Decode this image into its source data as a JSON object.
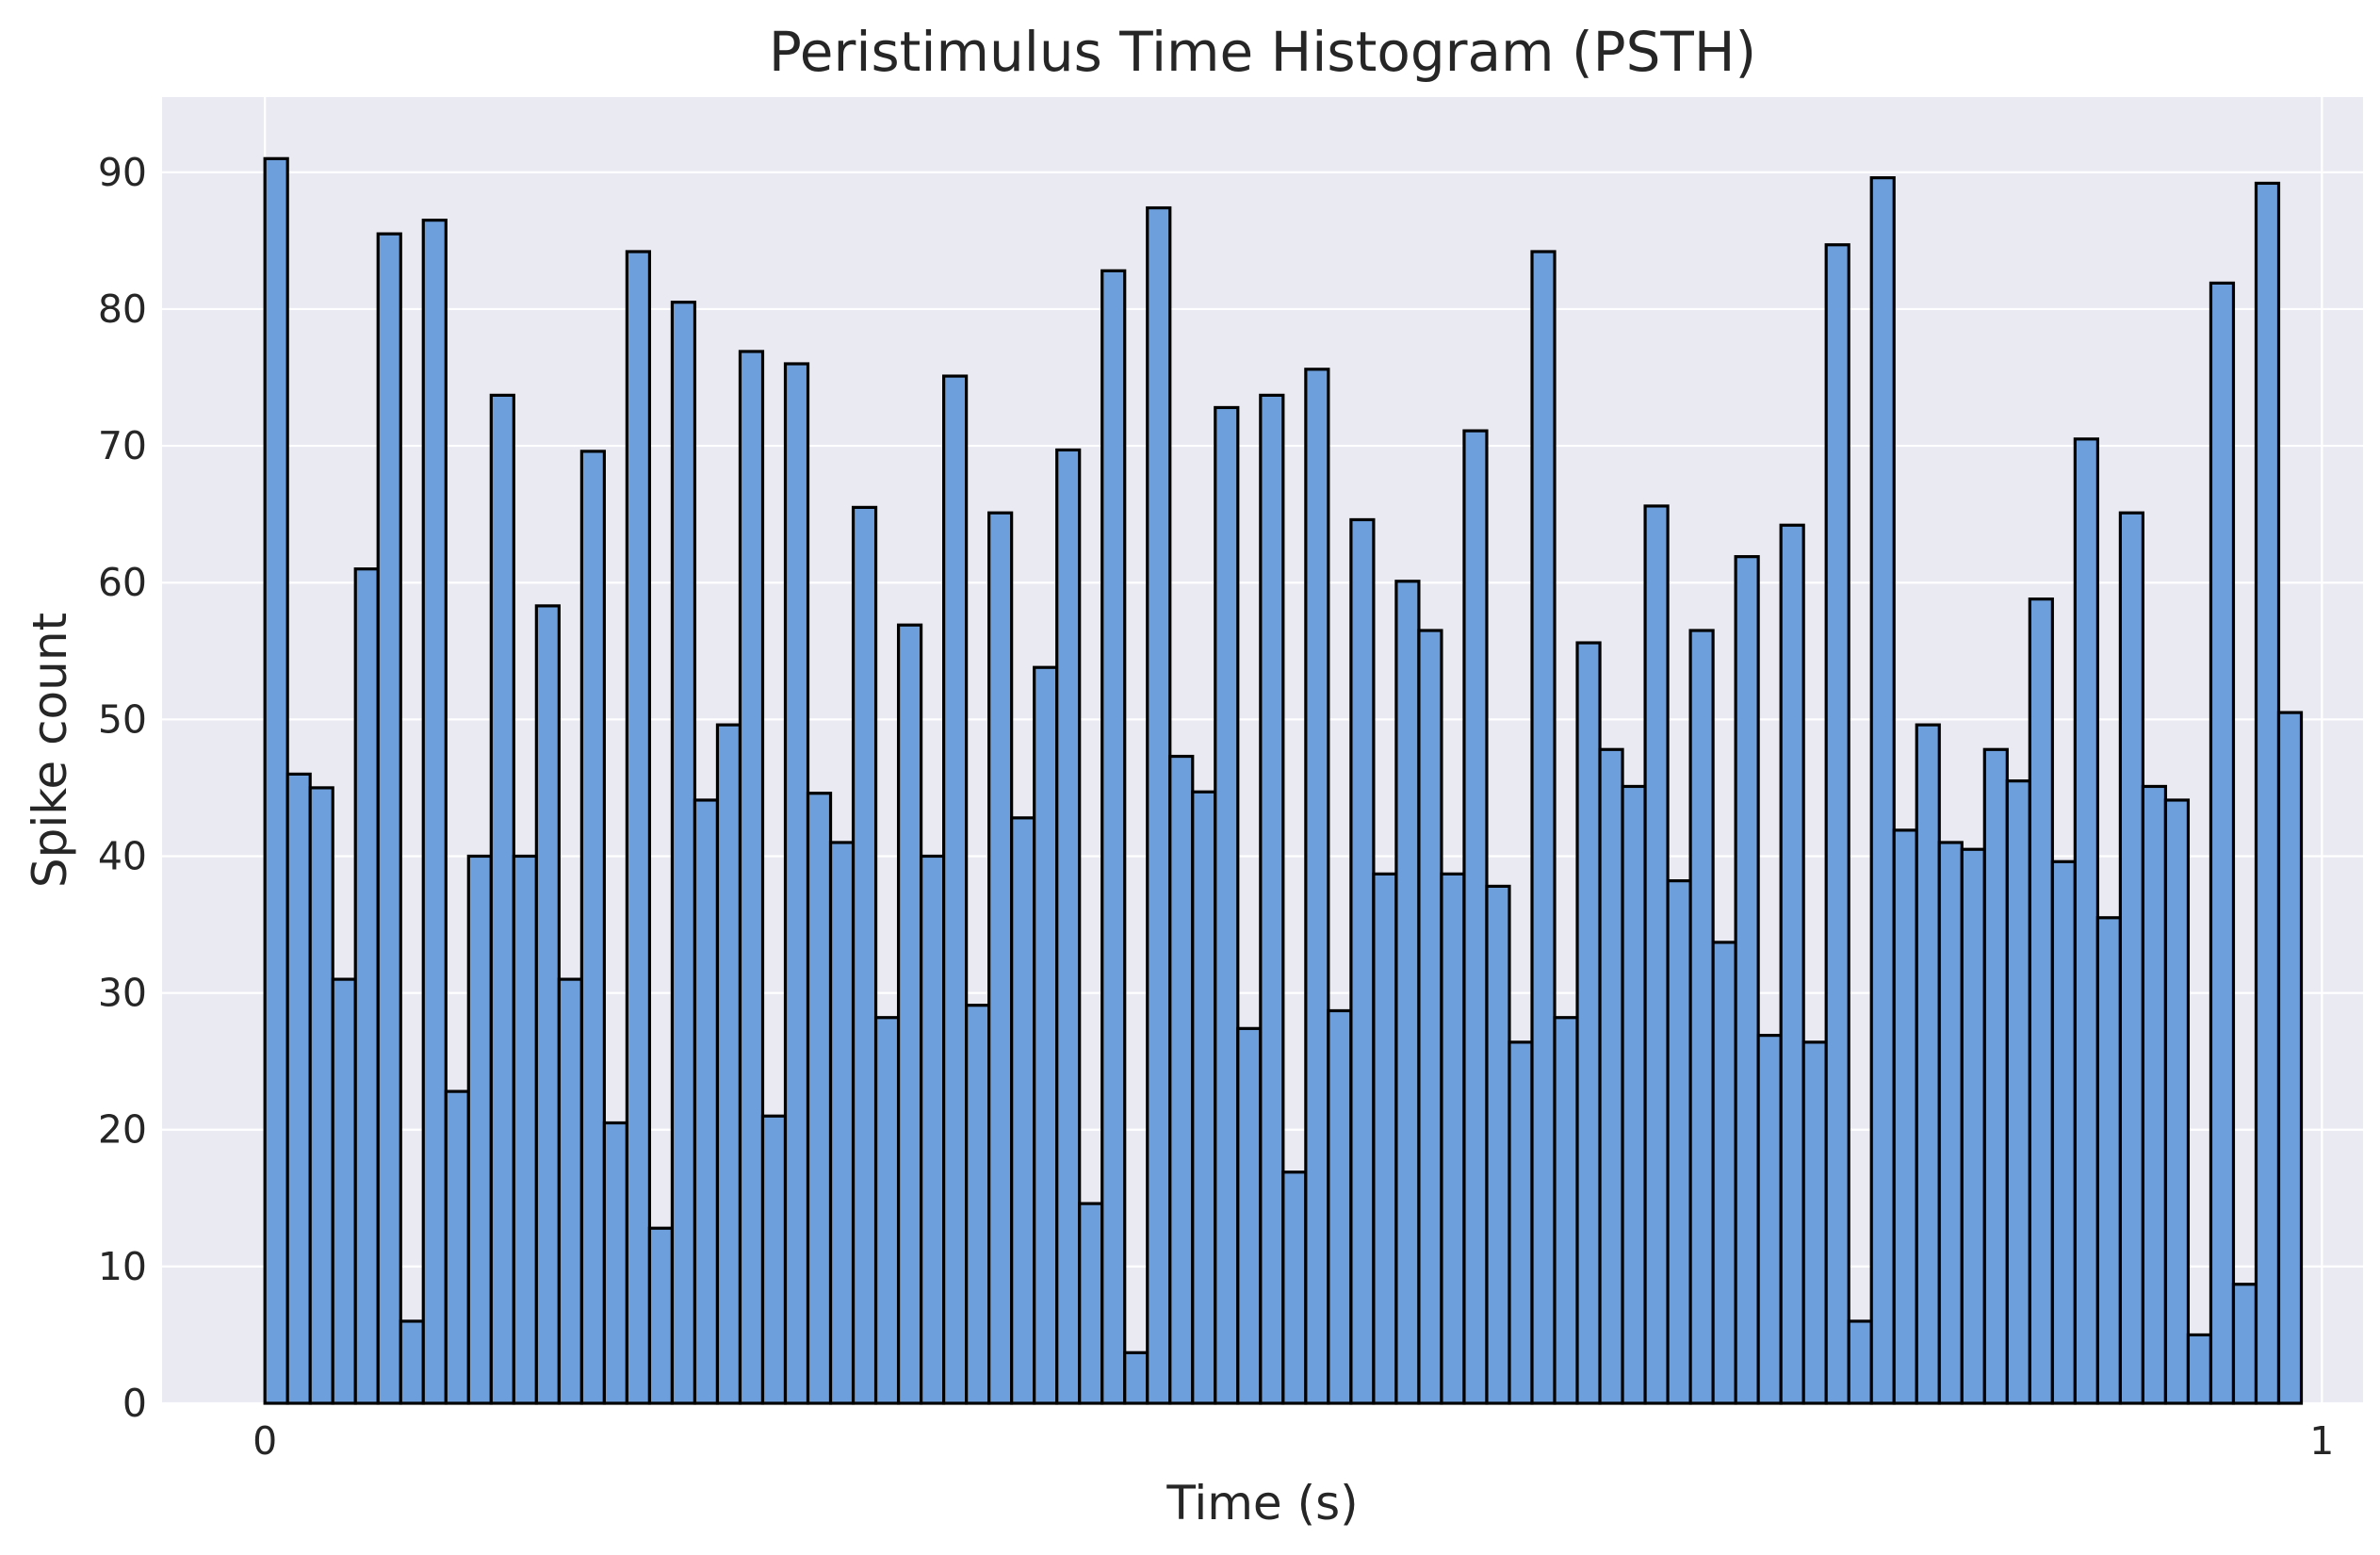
{
  "chart_data": {
    "type": "bar",
    "title": "Peristimulus Time Histogram (PSTH)",
    "xlabel": "Time (s)",
    "ylabel": "Spike count",
    "xlim": [
      -0.05,
      1.02
    ],
    "ylim": [
      0,
      95.5
    ],
    "bin_width": 0.011,
    "x_start": 0.0,
    "xticks": [
      0,
      1
    ],
    "yticks": [
      0,
      10,
      20,
      30,
      40,
      50,
      60,
      70,
      80,
      90
    ],
    "grid": true,
    "values": [
      91,
      46,
      45,
      31,
      61,
      85.5,
      6,
      86.5,
      22.8,
      40,
      73.7,
      40,
      58.3,
      31,
      69.6,
      20.5,
      84.2,
      12.8,
      80.5,
      44.1,
      49.6,
      76.9,
      21,
      76,
      44.6,
      41,
      65.5,
      28.2,
      56.9,
      40,
      75.1,
      29.1,
      65.1,
      42.8,
      53.8,
      69.7,
      14.6,
      82.8,
      3.7,
      87.4,
      47.3,
      44.7,
      72.8,
      27.4,
      73.7,
      16.9,
      75.6,
      28.7,
      64.6,
      38.7,
      60.1,
      56.5,
      38.7,
      71.1,
      37.8,
      26.4,
      84.2,
      28.2,
      55.6,
      47.8,
      45.1,
      65.6,
      38.2,
      56.5,
      33.7,
      61.9,
      26.9,
      64.2,
      26.4,
      84.7,
      6,
      89.6,
      41.9,
      49.6,
      41,
      40.5,
      47.8,
      45.5,
      58.8,
      39.6,
      70.5,
      35.5,
      65.1,
      45.1,
      44.1,
      5,
      81.9,
      8.7,
      89.2,
      50.5
    ],
    "bar_color": "#6c9fdb",
    "edge_color": "#000000",
    "plot_background": "#eaeaf2"
  }
}
